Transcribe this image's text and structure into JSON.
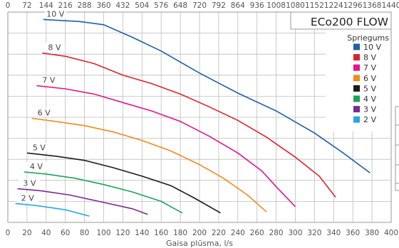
{
  "chart_data": {
    "type": "line",
    "title": "ECo200 FLOW",
    "xlabel": "Gaisa plūsma, l/s",
    "x_top_label": "",
    "xlim": [
      0,
      400
    ],
    "ylim": [
      0,
      10
    ],
    "x_ticks": [
      0,
      20,
      40,
      60,
      80,
      100,
      120,
      140,
      160,
      180,
      200,
      220,
      240,
      260,
      280,
      300,
      320,
      340,
      360,
      380,
      400
    ],
    "x_top_ticks": [
      0,
      72,
      144,
      216,
      288,
      360,
      432,
      504,
      576,
      648,
      720,
      792,
      864,
      936,
      1008,
      1080,
      1152,
      1224,
      1296,
      1368,
      1440
    ],
    "grid": true,
    "legend_title": "Spriegums",
    "legend_position": "top-right",
    "series": [
      {
        "name": "10 V",
        "label": "10 V",
        "color": "#1f5fa6",
        "x": [
          37,
          75,
          100,
          130,
          160,
          200,
          240,
          280,
          320,
          350,
          378
        ],
        "y": [
          9.65,
          9.55,
          9.4,
          8.8,
          8.15,
          7.1,
          6.15,
          5.3,
          4.25,
          3.3,
          2.35
        ]
      },
      {
        "name": "8 V",
        "label": "8 V",
        "color": "#d7262b",
        "x": [
          36,
          60,
          90,
          120,
          150,
          180,
          210,
          240,
          270,
          300,
          325,
          342
        ],
        "y": [
          8.05,
          7.9,
          7.55,
          7.0,
          6.6,
          6.1,
          5.5,
          4.85,
          4.05,
          3.1,
          2.2,
          1.2
        ]
      },
      {
        "name": "7 V",
        "label": "7 V",
        "color": "#e0168b",
        "x": [
          30,
          60,
          90,
          120,
          150,
          180,
          210,
          240,
          265,
          280,
          300
        ],
        "y": [
          6.5,
          6.35,
          6.1,
          5.7,
          5.3,
          4.8,
          4.1,
          3.3,
          2.45,
          1.7,
          0.75
        ]
      },
      {
        "name": "6 V",
        "label": "6 V",
        "color": "#f28a1e",
        "x": [
          25,
          50,
          80,
          110,
          140,
          170,
          200,
          225,
          250,
          270
        ],
        "y": [
          4.95,
          4.8,
          4.6,
          4.3,
          3.9,
          3.4,
          2.75,
          2.1,
          1.3,
          0.5
        ]
      },
      {
        "name": "5 V",
        "label": "5 V",
        "color": "#1a1a1a",
        "x": [
          20,
          50,
          80,
          110,
          140,
          170,
          195,
          222
        ],
        "y": [
          3.3,
          3.15,
          2.95,
          2.6,
          2.2,
          1.75,
          1.15,
          0.45
        ]
      },
      {
        "name": "4 V",
        "label": "4 V",
        "color": "#1ba35a",
        "x": [
          17,
          40,
          70,
          100,
          130,
          160,
          182
        ],
        "y": [
          2.4,
          2.3,
          2.1,
          1.8,
          1.45,
          1.0,
          0.45
        ]
      },
      {
        "name": "3 V",
        "label": "3 V",
        "color": "#7b2a8e",
        "x": [
          10,
          35,
          65,
          100,
          130,
          146
        ],
        "y": [
          1.6,
          1.5,
          1.3,
          0.95,
          0.65,
          0.38
        ]
      },
      {
        "name": "2 V",
        "label": "2 V",
        "color": "#2ba6df",
        "x": [
          8,
          30,
          60,
          85
        ],
        "y": [
          0.9,
          0.8,
          0.6,
          0.3
        ]
      }
    ]
  }
}
